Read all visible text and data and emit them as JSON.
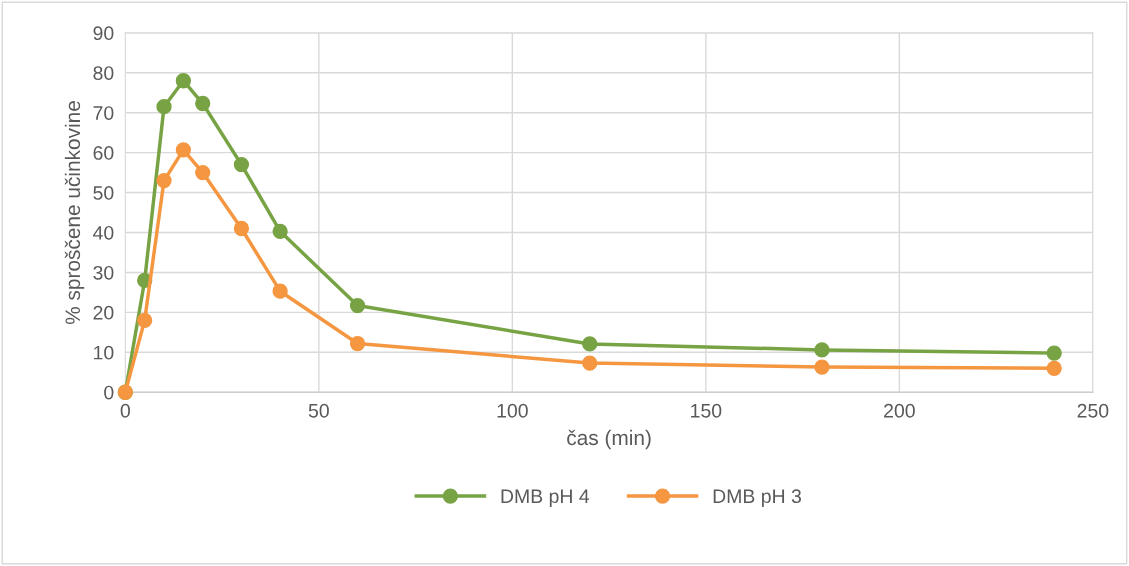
{
  "chart_data": {
    "type": "line",
    "xlabel": "čas (min)",
    "ylabel": "% sproščene učinkovine",
    "x": [
      0,
      5,
      10,
      15,
      20,
      30,
      40,
      60,
      120,
      180,
      240
    ],
    "series": [
      {
        "name": "DMB pH 4",
        "color": "#77a344",
        "values": [
          0,
          28,
          71.5,
          78,
          72.3,
          57,
          40.3,
          21.7,
          12.1,
          10.6,
          9.8
        ]
      },
      {
        "name": "DMB pH 3",
        "color": "#f59640",
        "values": [
          0,
          18,
          53,
          60.7,
          55,
          41,
          25.3,
          12.2,
          7.3,
          6.3,
          6.0
        ]
      }
    ],
    "xlim": [
      0,
      250
    ],
    "xticks": [
      0,
      50,
      100,
      150,
      200,
      250
    ],
    "ylim": [
      0,
      90
    ],
    "yticks": [
      0,
      10,
      20,
      30,
      40,
      50,
      60,
      70,
      80,
      90
    ],
    "grid": true,
    "legend": "bottom",
    "marker": "circle",
    "line_style": "solid"
  }
}
